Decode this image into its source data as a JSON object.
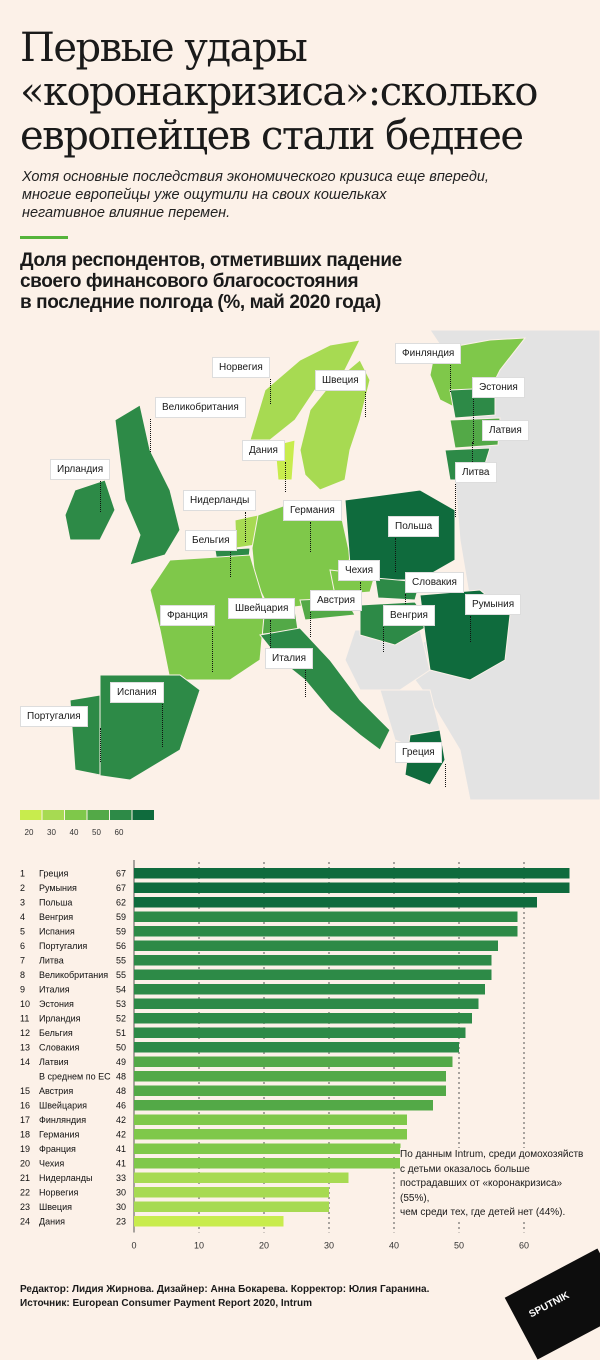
{
  "header": {
    "title": "Первые удары\n«коронакризиса»:сколько\nевропейцев стали беднее",
    "subtitle": "Хотя основные последствия экономического кризиса еще впереди,\nмногие европейцы уже ощутили на своих кошельках\nнегативное влияние перемен."
  },
  "chart_title": "Доля респондентов, отметивших падение\nсвоего финансового благосостояния\nв последние полгода (%, май 2020 года)",
  "colors": {
    "scale": [
      "#c8ec4d",
      "#a7da52",
      "#7fc84a",
      "#53a947",
      "#2d8a47",
      "#0f6b3d"
    ],
    "neutral": "#e3e3e3",
    "background": "#fcf1e8",
    "accent": "#55b43b"
  },
  "legend": {
    "ticks": [
      "20",
      "30",
      "40",
      "50",
      "60"
    ]
  },
  "map_labels": [
    {
      "name": "Финляндия"
    },
    {
      "name": "Норвегия"
    },
    {
      "name": "Швеция"
    },
    {
      "name": "Эстония"
    },
    {
      "name": "Великобритания"
    },
    {
      "name": "Латвия"
    },
    {
      "name": "Дания"
    },
    {
      "name": "Ирландия"
    },
    {
      "name": "Литва"
    },
    {
      "name": "Нидерланды"
    },
    {
      "name": "Германия"
    },
    {
      "name": "Польша"
    },
    {
      "name": "Бельгия"
    },
    {
      "name": "Чехия"
    },
    {
      "name": "Словакия"
    },
    {
      "name": "Франция"
    },
    {
      "name": "Швейцария"
    },
    {
      "name": "Австрия"
    },
    {
      "name": "Венгрия"
    },
    {
      "name": "Румыния"
    },
    {
      "name": "Италия"
    },
    {
      "name": "Испания"
    },
    {
      "name": "Португалия"
    },
    {
      "name": "Греция"
    }
  ],
  "note": "По данным Intrum, среди домохозяйств\nс детьми оказалось больше\nпострадавших от «коронакризиса» (55%),\nчем среди тех, где детей нет (44%).",
  "credits": {
    "line1": "Редактор: Лидия Жирнова. Дизайнер: Анна Бокарева. Корректор: Юлия Гаранина.",
    "line2": "Источник: European Consumer Payment Report 2020, Intrum"
  },
  "logo": "SPUTNIK",
  "chart_data": {
    "type": "bar",
    "orientation": "horizontal",
    "title": "Доля респондентов, отметивших падение своего финансового благосостояния в последние полгода (%, май 2020 года)",
    "xlim": [
      0,
      67
    ],
    "xticks": [
      0,
      10,
      20,
      30,
      40,
      50,
      60
    ],
    "rows": [
      {
        "rank": "1",
        "name": "Греция",
        "value": 67
      },
      {
        "rank": "2",
        "name": "Румыния",
        "value": 67
      },
      {
        "rank": "3",
        "name": "Польша",
        "value": 62
      },
      {
        "rank": "4",
        "name": "Венгрия",
        "value": 59
      },
      {
        "rank": "5",
        "name": "Испания",
        "value": 59
      },
      {
        "rank": "6",
        "name": "Португалия",
        "value": 56
      },
      {
        "rank": "7",
        "name": "Литва",
        "value": 55
      },
      {
        "rank": "8",
        "name": "Великобритания",
        "value": 55
      },
      {
        "rank": "9",
        "name": "Италия",
        "value": 54
      },
      {
        "rank": "10",
        "name": "Эстония",
        "value": 53
      },
      {
        "rank": "11",
        "name": "Ирландия",
        "value": 52
      },
      {
        "rank": "12",
        "name": "Бельгия",
        "value": 51
      },
      {
        "rank": "13",
        "name": "Словакия",
        "value": 50
      },
      {
        "rank": "14",
        "name": "Латвия",
        "value": 49
      },
      {
        "rank": "",
        "name": "В среднем по ЕС",
        "value": 48
      },
      {
        "rank": "15",
        "name": "Австрия",
        "value": 48
      },
      {
        "rank": "16",
        "name": "Швейцария",
        "value": 46
      },
      {
        "rank": "17",
        "name": "Финляндия",
        "value": 42
      },
      {
        "rank": "18",
        "name": "Германия",
        "value": 42
      },
      {
        "rank": "19",
        "name": "Франция",
        "value": 41
      },
      {
        "rank": "20",
        "name": "Чехия",
        "value": 41
      },
      {
        "rank": "21",
        "name": "Нидерланды",
        "value": 33
      },
      {
        "rank": "22",
        "name": "Норвегия",
        "value": 30
      },
      {
        "rank": "23",
        "name": "Швеция",
        "value": 30
      },
      {
        "rank": "24",
        "name": "Дания",
        "value": 23
      }
    ]
  }
}
